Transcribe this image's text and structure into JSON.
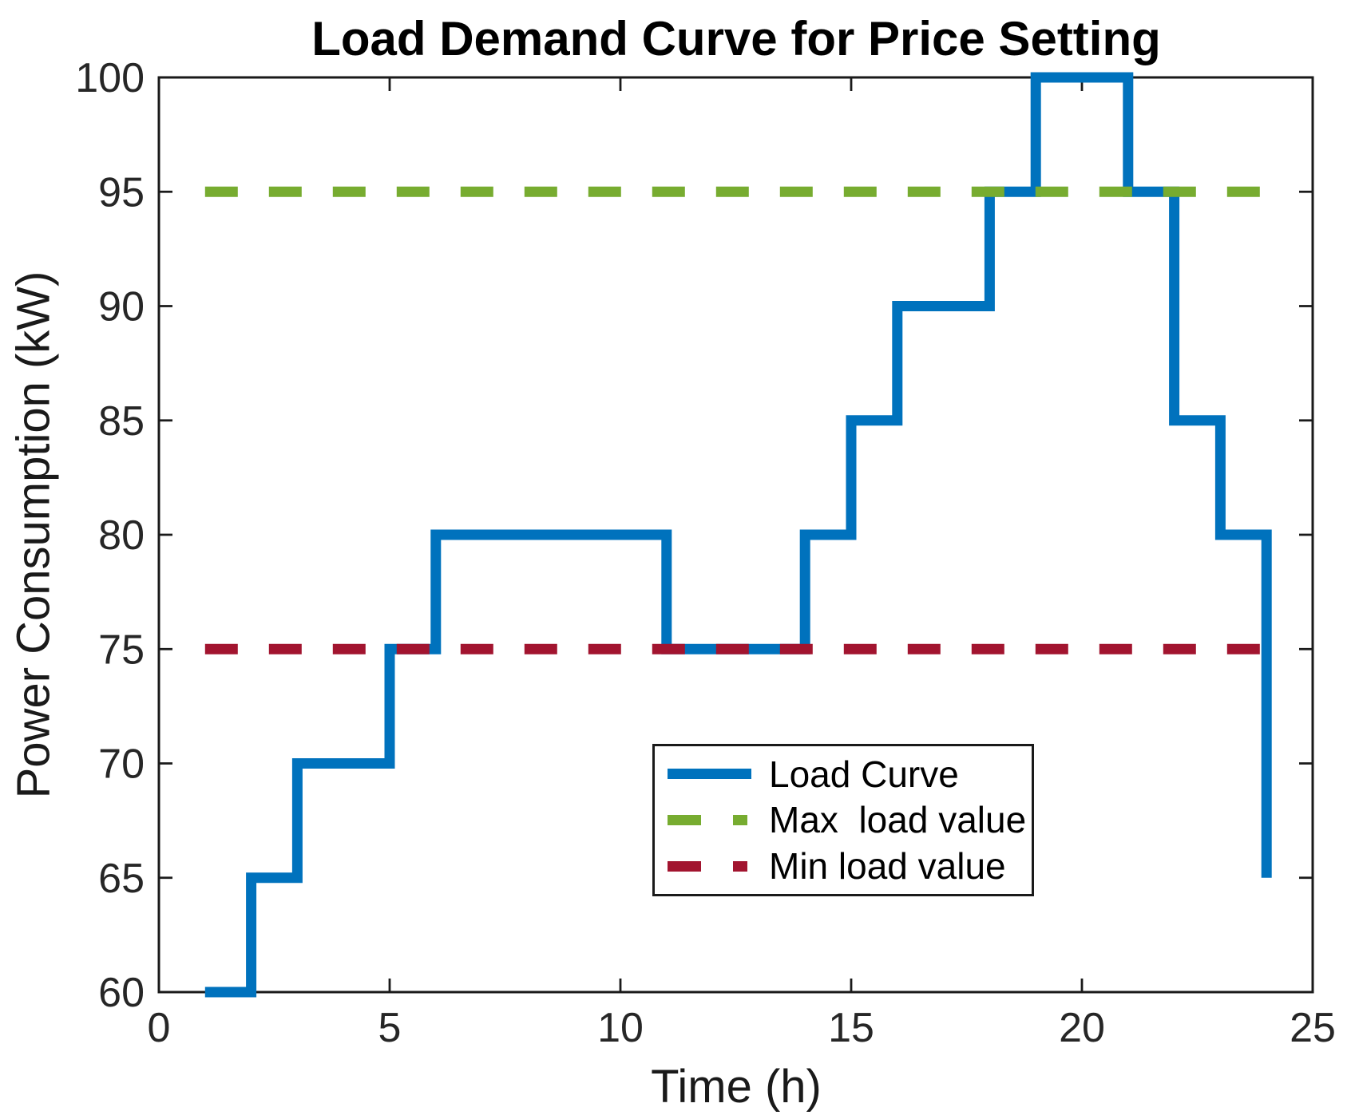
{
  "title": "Load Demand Curve for Price Setting",
  "chart_data": {
    "type": "line",
    "subtype": "stairs",
    "title": "Load Demand Curve for Price Setting",
    "xlabel": "Time (h)",
    "ylabel": "Power Consumption (kW)",
    "xlim": [
      0,
      25
    ],
    "ylim": [
      60,
      100
    ],
    "x_ticks": [
      "0",
      "5",
      "10",
      "15",
      "20",
      "25"
    ],
    "x_tick_values": [
      0,
      5,
      10,
      15,
      20,
      25
    ],
    "y_ticks": [
      "60",
      "65",
      "70",
      "75",
      "80",
      "85",
      "90",
      "95",
      "100"
    ],
    "y_tick_values": [
      60,
      65,
      70,
      75,
      80,
      85,
      90,
      95,
      100
    ],
    "grid": false,
    "box": true,
    "axis_color": "#1a1a1a",
    "tick_label_color": "#262626",
    "series": [
      {
        "name": "Load Curve",
        "type": "stairs",
        "style": "solid",
        "color": "#0072BD",
        "x": [
          1,
          2,
          3,
          4,
          5,
          6,
          7,
          8,
          9,
          10,
          11,
          12,
          13,
          14,
          15,
          16,
          17,
          18,
          19,
          20,
          21,
          22,
          23,
          24
        ],
        "y": [
          60,
          65,
          70,
          70,
          75,
          80,
          80,
          80,
          80,
          80,
          75,
          75,
          75,
          80,
          85,
          90,
          90,
          95,
          100,
          100,
          95,
          85,
          80,
          65
        ]
      },
      {
        "name": "Max  load value",
        "type": "hline",
        "style": "dashed",
        "color": "#77AC30",
        "y": 95,
        "x_start": 1,
        "x_end": 24
      },
      {
        "name": "Min load value",
        "type": "hline",
        "style": "dashed",
        "color": "#A2142F",
        "y": 75,
        "x_start": 1,
        "x_end": 24
      }
    ],
    "legend": {
      "position": "lower-center-right",
      "items": [
        {
          "label": "Load Curve",
          "color": "#0072BD",
          "style": "solid"
        },
        {
          "label": "Max  load value",
          "color": "#77AC30",
          "style": "dashed"
        },
        {
          "label": "Min load value",
          "color": "#A2142F",
          "style": "dashed"
        }
      ]
    }
  }
}
